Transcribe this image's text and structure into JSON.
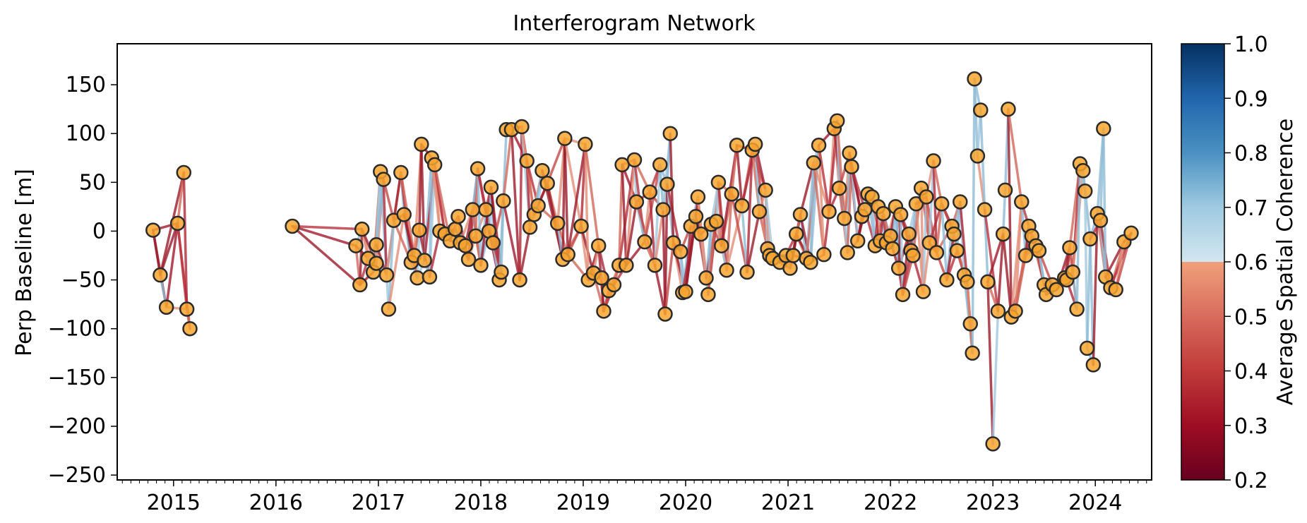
{
  "chart_data": {
    "type": "scatter",
    "title": "Interferogram Network",
    "xlabel": "",
    "ylabel": "Perp Baseline [m]",
    "xlim": [
      2014.45,
      2024.55
    ],
    "ylim": [
      -255,
      192
    ],
    "x_ticks": [
      2015,
      2016,
      2017,
      2018,
      2019,
      2020,
      2021,
      2022,
      2023,
      2024
    ],
    "y_ticks": [
      150,
      100,
      50,
      0,
      -50,
      -100,
      -150,
      -200,
      -250
    ],
    "y_tick_labels": [
      "150",
      "100",
      "50",
      "0",
      "−50",
      "−100",
      "−150",
      "−200",
      "−250"
    ],
    "grid": false,
    "colorbar": {
      "label": "Average Spatial Coherence",
      "min": 0.2,
      "max": 1.0,
      "ticks": [
        "0.2",
        "0.3",
        "0.4",
        "0.5",
        "0.6",
        "0.7",
        "0.8",
        "0.9",
        "1.0"
      ],
      "colormap": "RdBu"
    },
    "point_color": "#f7a52f",
    "points": [
      [
        2014.8,
        1
      ],
      [
        2014.87,
        -45
      ],
      [
        2014.93,
        -78
      ],
      [
        2015.04,
        8
      ],
      [
        2015.1,
        60
      ],
      [
        2015.13,
        -80
      ],
      [
        2015.16,
        -100
      ],
      [
        2016.16,
        5
      ],
      [
        2016.78,
        -15
      ],
      [
        2016.82,
        -55
      ],
      [
        2016.84,
        2
      ],
      [
        2016.9,
        -28
      ],
      [
        2016.95,
        -42
      ],
      [
        2016.98,
        -33
      ],
      [
        2016.98,
        -14
      ],
      [
        2017.02,
        61
      ],
      [
        2017.05,
        53
      ],
      [
        2017.08,
        -45
      ],
      [
        2017.1,
        -80
      ],
      [
        2017.15,
        11
      ],
      [
        2017.22,
        60
      ],
      [
        2017.25,
        17
      ],
      [
        2017.32,
        -32
      ],
      [
        2017.35,
        -25
      ],
      [
        2017.38,
        -48
      ],
      [
        2017.4,
        1
      ],
      [
        2017.42,
        89
      ],
      [
        2017.45,
        -30
      ],
      [
        2017.5,
        -47
      ],
      [
        2017.52,
        75
      ],
      [
        2017.55,
        68
      ],
      [
        2017.6,
        0
      ],
      [
        2017.65,
        -3
      ],
      [
        2017.7,
        -10
      ],
      [
        2017.75,
        2
      ],
      [
        2017.78,
        15
      ],
      [
        2017.8,
        -12
      ],
      [
        2017.85,
        -15
      ],
      [
        2017.88,
        -29
      ],
      [
        2017.92,
        22
      ],
      [
        2017.95,
        -5
      ],
      [
        2017.97,
        64
      ],
      [
        2018.0,
        -35
      ],
      [
        2018.05,
        22
      ],
      [
        2018.08,
        0
      ],
      [
        2018.1,
        45
      ],
      [
        2018.12,
        -12
      ],
      [
        2018.18,
        -50
      ],
      [
        2018.2,
        -42
      ],
      [
        2018.22,
        31
      ],
      [
        2018.25,
        104
      ],
      [
        2018.3,
        104
      ],
      [
        2018.38,
        -50
      ],
      [
        2018.4,
        107
      ],
      [
        2018.45,
        72
      ],
      [
        2018.48,
        4
      ],
      [
        2018.52,
        17
      ],
      [
        2018.56,
        26
      ],
      [
        2018.6,
        62
      ],
      [
        2018.65,
        49
      ],
      [
        2018.75,
        8
      ],
      [
        2018.8,
        -29
      ],
      [
        2018.82,
        95
      ],
      [
        2018.85,
        -24
      ],
      [
        2018.98,
        5
      ],
      [
        2019.02,
        89
      ],
      [
        2019.05,
        -50
      ],
      [
        2019.1,
        -43
      ],
      [
        2019.15,
        -15
      ],
      [
        2019.18,
        -48
      ],
      [
        2019.2,
        -82
      ],
      [
        2019.25,
        -61
      ],
      [
        2019.3,
        -55
      ],
      [
        2019.35,
        -35
      ],
      [
        2019.38,
        68
      ],
      [
        2019.42,
        -35
      ],
      [
        2019.5,
        73
      ],
      [
        2019.52,
        30
      ],
      [
        2019.6,
        -11
      ],
      [
        2019.65,
        40
      ],
      [
        2019.7,
        -35
      ],
      [
        2019.75,
        68
      ],
      [
        2019.78,
        22
      ],
      [
        2019.8,
        -85
      ],
      [
        2019.82,
        48
      ],
      [
        2019.85,
        100
      ],
      [
        2019.88,
        -12
      ],
      [
        2019.95,
        -21
      ],
      [
        2019.97,
        -63
      ],
      [
        2020.0,
        -62
      ],
      [
        2020.05,
        5
      ],
      [
        2020.1,
        15
      ],
      [
        2020.12,
        35
      ],
      [
        2020.15,
        -3
      ],
      [
        2020.2,
        -48
      ],
      [
        2020.22,
        -65
      ],
      [
        2020.25,
        7
      ],
      [
        2020.3,
        10
      ],
      [
        2020.32,
        50
      ],
      [
        2020.35,
        -15
      ],
      [
        2020.4,
        -40
      ],
      [
        2020.45,
        38
      ],
      [
        2020.5,
        88
      ],
      [
        2020.55,
        26
      ],
      [
        2020.6,
        -42
      ],
      [
        2020.65,
        83
      ],
      [
        2020.68,
        89
      ],
      [
        2020.72,
        20
      ],
      [
        2020.78,
        42
      ],
      [
        2020.8,
        -18
      ],
      [
        2020.82,
        -25
      ],
      [
        2020.85,
        -28
      ],
      [
        2020.92,
        -32
      ],
      [
        2020.98,
        -25
      ],
      [
        2021.02,
        -38
      ],
      [
        2021.05,
        -25
      ],
      [
        2021.08,
        -3
      ],
      [
        2021.12,
        17
      ],
      [
        2021.18,
        -28
      ],
      [
        2021.22,
        -32
      ],
      [
        2021.25,
        70
      ],
      [
        2021.3,
        88
      ],
      [
        2021.35,
        -24
      ],
      [
        2021.4,
        20
      ],
      [
        2021.45,
        105
      ],
      [
        2021.48,
        113
      ],
      [
        2021.5,
        44
      ],
      [
        2021.55,
        13
      ],
      [
        2021.58,
        -22
      ],
      [
        2021.6,
        80
      ],
      [
        2021.62,
        66
      ],
      [
        2021.68,
        -10
      ],
      [
        2021.72,
        15
      ],
      [
        2021.75,
        22
      ],
      [
        2021.78,
        38
      ],
      [
        2021.82,
        35
      ],
      [
        2021.85,
        -15
      ],
      [
        2021.88,
        25
      ],
      [
        2021.9,
        -10
      ],
      [
        2021.93,
        18
      ],
      [
        2021.96,
        -12
      ],
      [
        2022.0,
        -5
      ],
      [
        2022.02,
        -18
      ],
      [
        2022.05,
        25
      ],
      [
        2022.08,
        -38
      ],
      [
        2022.1,
        17
      ],
      [
        2022.12,
        -65
      ],
      [
        2022.18,
        -3
      ],
      [
        2022.2,
        -20
      ],
      [
        2022.22,
        -25
      ],
      [
        2022.25,
        28
      ],
      [
        2022.3,
        44
      ],
      [
        2022.32,
        -62
      ],
      [
        2022.35,
        35
      ],
      [
        2022.38,
        -12
      ],
      [
        2022.42,
        72
      ],
      [
        2022.45,
        -22
      ],
      [
        2022.5,
        28
      ],
      [
        2022.55,
        -50
      ],
      [
        2022.6,
        5
      ],
      [
        2022.62,
        -3
      ],
      [
        2022.65,
        -20
      ],
      [
        2022.68,
        30
      ],
      [
        2022.72,
        -45
      ],
      [
        2022.75,
        -52
      ],
      [
        2022.78,
        -95
      ],
      [
        2022.8,
        -125
      ],
      [
        2022.82,
        156
      ],
      [
        2022.85,
        77
      ],
      [
        2022.88,
        124
      ],
      [
        2022.92,
        22
      ],
      [
        2022.95,
        -52
      ],
      [
        2023.0,
        -218
      ],
      [
        2023.05,
        -82
      ],
      [
        2023.1,
        -3
      ],
      [
        2023.12,
        42
      ],
      [
        2023.15,
        125
      ],
      [
        2023.18,
        -88
      ],
      [
        2023.22,
        -82
      ],
      [
        2023.28,
        30
      ],
      [
        2023.32,
        -25
      ],
      [
        2023.35,
        5
      ],
      [
        2023.38,
        -5
      ],
      [
        2023.42,
        -15
      ],
      [
        2023.45,
        -20
      ],
      [
        2023.5,
        -55
      ],
      [
        2023.52,
        -65
      ],
      [
        2023.58,
        -55
      ],
      [
        2023.62,
        -60
      ],
      [
        2023.7,
        -48
      ],
      [
        2023.72,
        -50
      ],
      [
        2023.75,
        -17
      ],
      [
        2023.78,
        -42
      ],
      [
        2023.82,
        -80
      ],
      [
        2023.85,
        69
      ],
      [
        2023.88,
        62
      ],
      [
        2023.9,
        41
      ],
      [
        2023.92,
        -120
      ],
      [
        2023.95,
        -8
      ],
      [
        2023.98,
        -137
      ],
      [
        2024.02,
        18
      ],
      [
        2024.05,
        11
      ],
      [
        2024.08,
        105
      ],
      [
        2024.1,
        -47
      ],
      [
        2024.15,
        -58
      ],
      [
        2024.2,
        -60
      ],
      [
        2024.28,
        -11
      ],
      [
        2024.35,
        -2
      ]
    ]
  }
}
